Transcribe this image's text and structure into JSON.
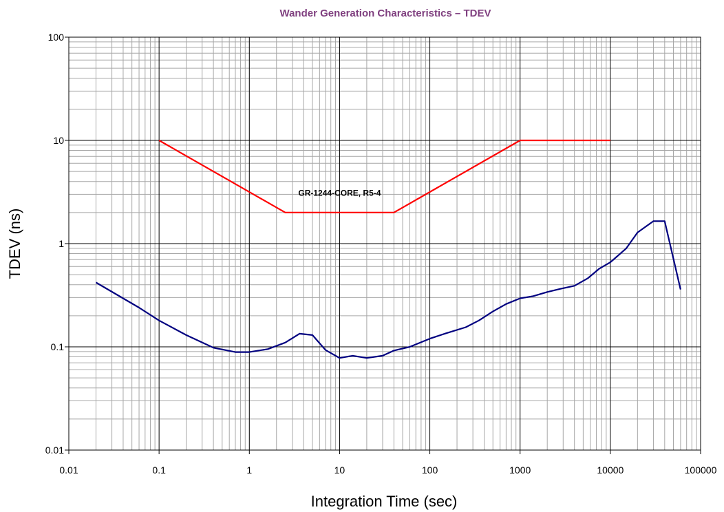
{
  "chart_data": {
    "type": "line",
    "title": "Wander Generation Characteristics  – TDEV",
    "title_color": "#7f3f7f",
    "xlabel": "Integration Time (sec)",
    "ylabel": "TDEV (ns)",
    "x_scale": "log",
    "y_scale": "log",
    "xlim": [
      0.01,
      100000
    ],
    "ylim": [
      0.01,
      100
    ],
    "x_tick_labels": [
      "0.01",
      "0.1",
      "1",
      "10",
      "100",
      "1000",
      "10000",
      "100000"
    ],
    "y_tick_labels": [
      "0.01",
      "0.1",
      "1",
      "10",
      "100"
    ],
    "grid": true,
    "legend": "none",
    "annotations": [
      {
        "text": "GR-1244-CORE, R5-4",
        "x": 10,
        "y": 2.9
      }
    ],
    "series": [
      {
        "color": "#ff0000",
        "x": [
          0.1,
          2.5,
          40,
          1000,
          10000
        ],
        "y": [
          10,
          2,
          2,
          10,
          10
        ]
      },
      {
        "color": "#000080",
        "x": [
          0.02,
          0.06,
          0.1,
          0.2,
          0.4,
          0.7,
          1.0,
          1.6,
          2.5,
          3.6,
          5,
          7,
          10,
          14,
          20,
          30,
          40,
          60,
          100,
          150,
          250,
          350,
          500,
          700,
          1000,
          1400,
          2000,
          2800,
          4000,
          5600,
          7500,
          10000,
          15000,
          20000,
          30000,
          40000,
          60000
        ],
        "y": [
          0.42,
          0.24,
          0.18,
          0.13,
          0.098,
          0.089,
          0.089,
          0.095,
          0.11,
          0.134,
          0.13,
          0.093,
          0.078,
          0.082,
          0.078,
          0.082,
          0.092,
          0.1,
          0.12,
          0.135,
          0.155,
          0.18,
          0.22,
          0.26,
          0.295,
          0.31,
          0.34,
          0.365,
          0.39,
          0.46,
          0.57,
          0.66,
          0.9,
          1.28,
          1.65,
          1.65,
          0.36
        ]
      }
    ]
  }
}
